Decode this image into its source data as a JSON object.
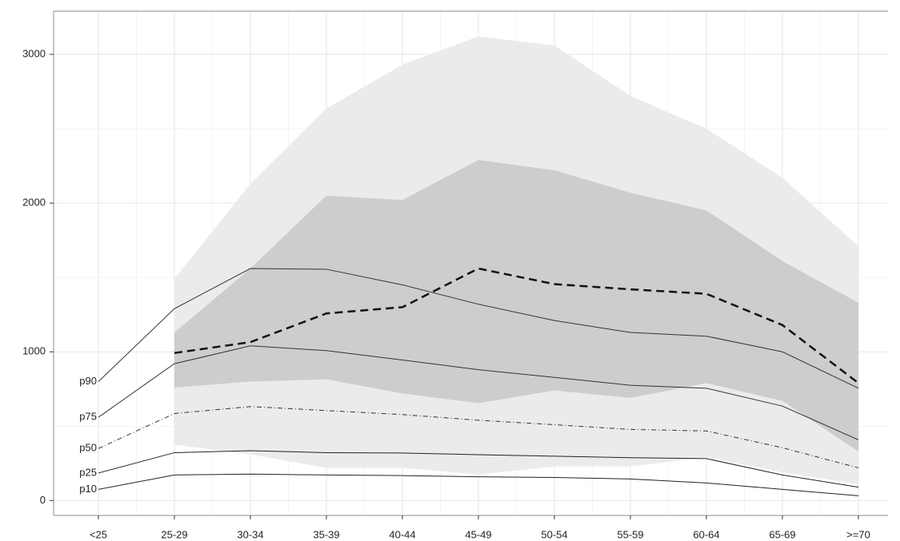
{
  "chart_data": {
    "type": "line",
    "categories": [
      "<25",
      "25-29",
      "30-34",
      "35-39",
      "40-44",
      "45-49",
      "50-54",
      "55-59",
      "60-64",
      "65-69",
      ">=70"
    ],
    "ylim": [
      -100,
      3290
    ],
    "yticks": [
      0,
      1000,
      2000,
      3000
    ],
    "grid": true,
    "bands": [
      {
        "color": "#ebebeb",
        "lower": [
          null,
          375,
          310,
          220,
          220,
          175,
          230,
          230,
          290,
          190,
          110
        ],
        "upper": [
          null,
          1490,
          2130,
          2635,
          2930,
          3120,
          3060,
          2720,
          2500,
          2170,
          1710
        ]
      },
      {
        "color": "#cdcdcd",
        "lower": [
          null,
          760,
          800,
          815,
          720,
          655,
          740,
          690,
          790,
          670,
          330
        ],
        "upper": [
          null,
          1130,
          1560,
          2050,
          2020,
          2290,
          2220,
          2070,
          1950,
          1610,
          1330
        ]
      }
    ],
    "series": [
      {
        "name": "p90",
        "color": "#333333",
        "dash": "none",
        "values": [
          800,
          1290,
          1560,
          1555,
          1450,
          1320,
          1210,
          1130,
          1105,
          1000,
          755
        ]
      },
      {
        "name": "p75",
        "color": "#333333",
        "dash": "none",
        "values": [
          560,
          920,
          1040,
          1008,
          945,
          880,
          828,
          775,
          755,
          635,
          408
        ]
      },
      {
        "name": "p50",
        "color": "#333333",
        "dash": "6,3,1,3",
        "values": [
          350,
          585,
          632,
          605,
          578,
          540,
          510,
          478,
          468,
          355,
          220
        ]
      },
      {
        "name": "p25",
        "color": "#222222",
        "dash": "none",
        "values": [
          185,
          322,
          335,
          322,
          320,
          308,
          298,
          288,
          282,
          172,
          90
        ]
      },
      {
        "name": "p10",
        "color": "#222222",
        "dash": "none",
        "values": [
          75,
          172,
          178,
          172,
          168,
          160,
          155,
          145,
          118,
          75,
          32
        ]
      },
      {
        "color": "#111111",
        "dash": "10,6",
        "width": 2.5,
        "values": [
          null,
          992,
          1065,
          1258,
          1300,
          1560,
          1455,
          1420,
          1390,
          1180,
          790
        ]
      }
    ]
  }
}
